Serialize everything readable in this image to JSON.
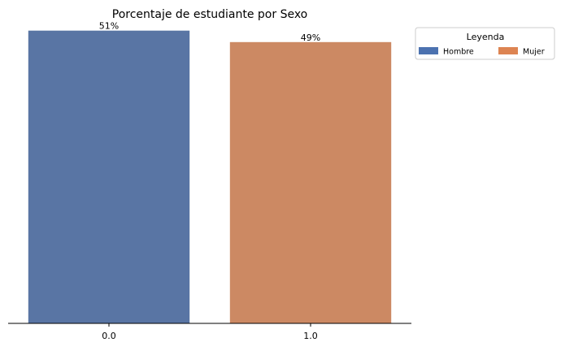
{
  "chart_data": {
    "type": "bar",
    "title": "Porcentaje de estudiante por Sexo",
    "xlabel": "",
    "ylabel": "",
    "categories": [
      "0.0",
      "1.0"
    ],
    "values": [
      51,
      49
    ],
    "data_labels": [
      "51%",
      "49%"
    ],
    "ylim": [
      0,
      53.5
    ],
    "colors": [
      "#5975a4",
      "#cc8963"
    ],
    "grid": false,
    "legend": {
      "title": "Leyenda",
      "placement": "outside-top-right",
      "entries": [
        {
          "label": "Hombre",
          "color": "#4c72b0"
        },
        {
          "label": "Mujer",
          "color": "#dd8452"
        }
      ]
    }
  }
}
